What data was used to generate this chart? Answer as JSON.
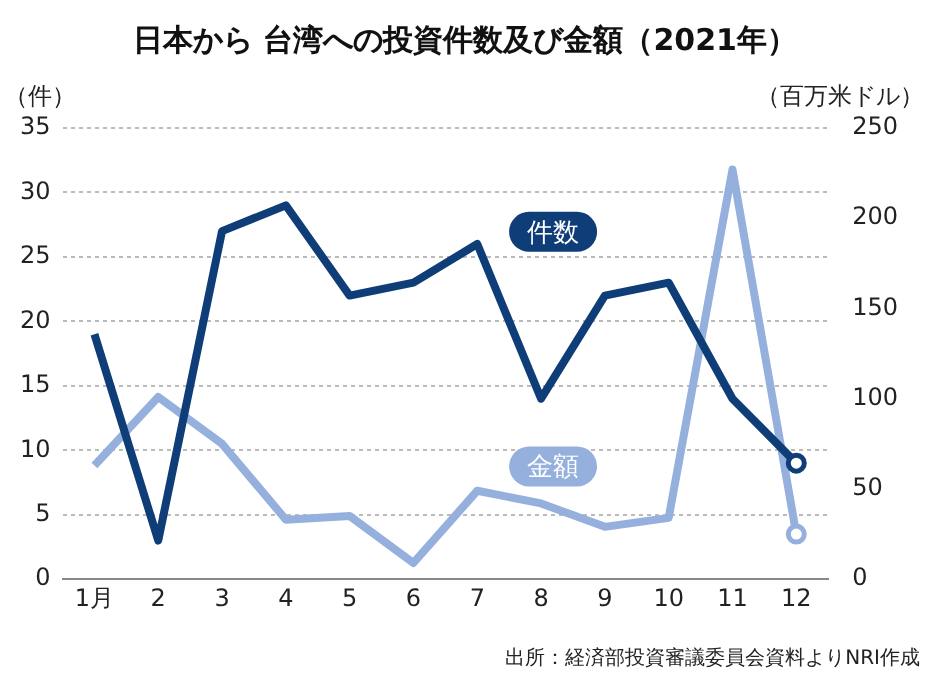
{
  "chart_data": {
    "type": "line",
    "title": "日本から 台湾への投資件数及び金額（2021年）",
    "ylabel": "（件）",
    "y2label": "（百万米ドル）",
    "categories": [
      "1月",
      "2",
      "3",
      "4",
      "5",
      "6",
      "7",
      "8",
      "9",
      "10",
      "11",
      "12"
    ],
    "series": [
      {
        "name": "件数",
        "color": "#0f3d78",
        "values": [
          19,
          3,
          27,
          29,
          22,
          23,
          26,
          14,
          22,
          23,
          14,
          9
        ]
      },
      {
        "name": "金額",
        "color": "#95b0dc",
        "axis": "y2",
        "values": [
          63,
          101,
          75,
          33,
          35,
          9,
          49,
          42,
          29,
          34,
          227,
          25
        ]
      }
    ],
    "ylim": [
      0,
      35
    ],
    "yticks": [
      0,
      5,
      10,
      15,
      20,
      25,
      30,
      35
    ],
    "y2lim": [
      0,
      250
    ],
    "y2ticks": [
      0,
      50,
      100,
      150,
      200,
      250
    ],
    "grid": "y",
    "legend": false,
    "annotations": [
      "出所：経済部投資審議委員会資料よりNRI作成"
    ]
  }
}
